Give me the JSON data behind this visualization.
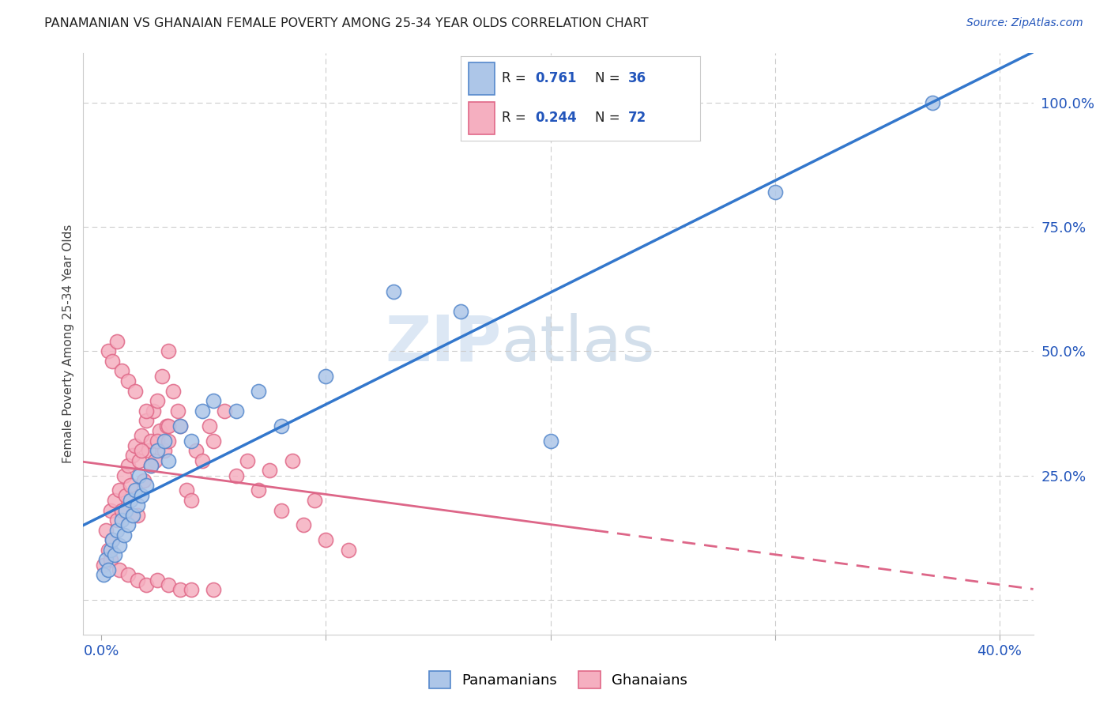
{
  "title": "PANAMANIAN VS GHANAIAN FEMALE POVERTY AMONG 25-34 YEAR OLDS CORRELATION CHART",
  "source": "Source: ZipAtlas.com",
  "ylabel_left": "Female Poverty Among 25-34 Year Olds",
  "x_ticks": [
    0.0,
    0.1,
    0.2,
    0.3,
    0.4
  ],
  "y_ticks_right": [
    0.0,
    0.25,
    0.5,
    0.75,
    1.0
  ],
  "y_tick_labels_right": [
    "",
    "25.0%",
    "50.0%",
    "75.0%",
    "100.0%"
  ],
  "xlim": [
    -0.008,
    0.415
  ],
  "ylim": [
    -0.07,
    1.1
  ],
  "legend_label1": "Panamanians",
  "legend_label2": "Ghanaians",
  "panama_color": "#adc6e8",
  "ghana_color": "#f5afc0",
  "panama_edge": "#5588cc",
  "ghana_edge": "#e06888",
  "regression_blue": "#3377cc",
  "regression_pink": "#dd6688",
  "watermark_zip": "ZIP",
  "watermark_atlas": "atlas",
  "background": "#ffffff",
  "grid_color": "#cccccc",
  "panama_points_x": [
    0.001,
    0.002,
    0.003,
    0.004,
    0.005,
    0.006,
    0.007,
    0.008,
    0.009,
    0.01,
    0.011,
    0.012,
    0.013,
    0.014,
    0.015,
    0.016,
    0.017,
    0.018,
    0.02,
    0.022,
    0.025,
    0.028,
    0.03,
    0.035,
    0.04,
    0.045,
    0.05,
    0.06,
    0.07,
    0.08,
    0.1,
    0.13,
    0.16,
    0.2,
    0.3,
    0.37
  ],
  "panama_points_y": [
    0.05,
    0.08,
    0.06,
    0.1,
    0.12,
    0.09,
    0.14,
    0.11,
    0.16,
    0.13,
    0.18,
    0.15,
    0.2,
    0.17,
    0.22,
    0.19,
    0.25,
    0.21,
    0.23,
    0.27,
    0.3,
    0.32,
    0.28,
    0.35,
    0.32,
    0.38,
    0.4,
    0.38,
    0.42,
    0.35,
    0.45,
    0.62,
    0.58,
    0.32,
    0.82,
    1.0
  ],
  "ghana_points_x": [
    0.001,
    0.002,
    0.003,
    0.004,
    0.005,
    0.006,
    0.007,
    0.008,
    0.009,
    0.01,
    0.011,
    0.012,
    0.013,
    0.014,
    0.015,
    0.016,
    0.017,
    0.018,
    0.019,
    0.02,
    0.021,
    0.022,
    0.023,
    0.024,
    0.025,
    0.026,
    0.027,
    0.028,
    0.029,
    0.03,
    0.032,
    0.034,
    0.035,
    0.038,
    0.04,
    0.042,
    0.045,
    0.048,
    0.05,
    0.055,
    0.06,
    0.065,
    0.07,
    0.075,
    0.08,
    0.085,
    0.09,
    0.095,
    0.1,
    0.11,
    0.003,
    0.005,
    0.007,
    0.009,
    0.012,
    0.015,
    0.018,
    0.022,
    0.025,
    0.03,
    0.004,
    0.008,
    0.012,
    0.016,
    0.02,
    0.025,
    0.03,
    0.035,
    0.04,
    0.05,
    0.02,
    0.03
  ],
  "ghana_points_y": [
    0.07,
    0.14,
    0.1,
    0.18,
    0.12,
    0.2,
    0.16,
    0.22,
    0.18,
    0.25,
    0.21,
    0.27,
    0.23,
    0.29,
    0.31,
    0.17,
    0.28,
    0.33,
    0.24,
    0.36,
    0.3,
    0.32,
    0.38,
    0.28,
    0.4,
    0.34,
    0.45,
    0.3,
    0.35,
    0.5,
    0.42,
    0.38,
    0.35,
    0.22,
    0.2,
    0.3,
    0.28,
    0.35,
    0.32,
    0.38,
    0.25,
    0.28,
    0.22,
    0.26,
    0.18,
    0.28,
    0.15,
    0.2,
    0.12,
    0.1,
    0.5,
    0.48,
    0.52,
    0.46,
    0.44,
    0.42,
    0.3,
    0.27,
    0.32,
    0.35,
    0.08,
    0.06,
    0.05,
    0.04,
    0.03,
    0.04,
    0.03,
    0.02,
    0.02,
    0.02,
    0.38,
    0.32
  ]
}
